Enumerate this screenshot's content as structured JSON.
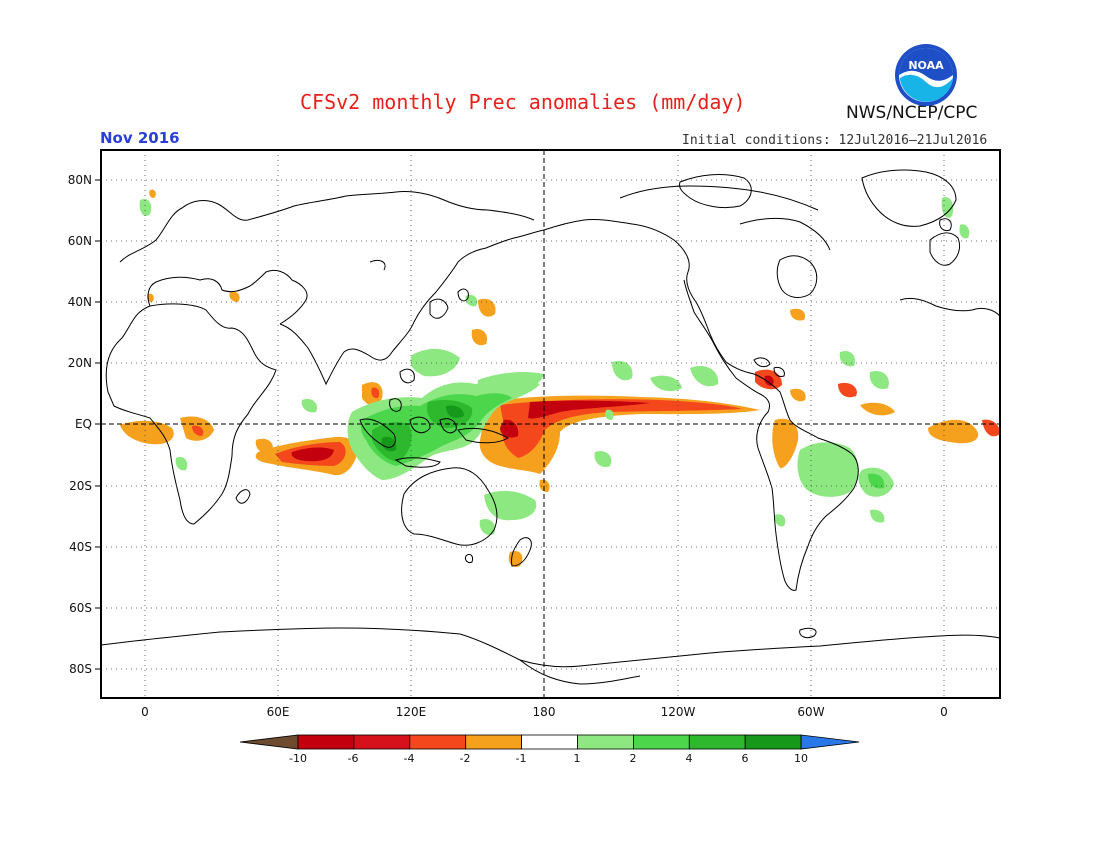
{
  "header": {
    "title": "CFSv2 monthly Prec anomalies (mm/day)",
    "month": "Nov 2016",
    "agency": "NWS/NCEP/CPC",
    "initial_conditions": "Initial conditions: 12Jul2016–21Jul2016",
    "logo_icon": "noaa-logo-icon",
    "logo_text": "NOAA"
  },
  "map": {
    "projection": "cylindrical",
    "lat_labels": [
      "80N",
      "60N",
      "40N",
      "20N",
      "EQ",
      "20S",
      "40S",
      "60S",
      "80S"
    ],
    "lon_labels": [
      "0",
      "60E",
      "120E",
      "180",
      "120W",
      "60W",
      "0"
    ],
    "reference_lines": [
      "equator",
      "dateline"
    ],
    "grid": "dotted"
  },
  "colorbar": {
    "labels": [
      "-10",
      "-6",
      "-4",
      "-2",
      "-1",
      "1",
      "2",
      "4",
      "6",
      "10"
    ],
    "colors": [
      "#6e4a2e",
      "#c3000e",
      "#d7111b",
      "#f5471c",
      "#f5a11e",
      "#ffffff",
      "#8ee882",
      "#4bd64b",
      "#2db82d",
      "#16991b",
      "#2a78e8"
    ]
  },
  "chart_data": {
    "type": "heatmap",
    "title": "CFSv2 monthly Prec anomalies (mm/day)",
    "subtitle": "Nov 2016",
    "units": "mm/day",
    "lat_range": [
      -90,
      90
    ],
    "lon_range": [
      -20,
      340
    ],
    "levels": [
      -10,
      -6,
      -4,
      -2,
      -1,
      1,
      2,
      4,
      6,
      10
    ],
    "anomaly_regions": [
      {
        "sign": "negative",
        "peak": "<-6",
        "region": "central equatorial Pacific 160E-130W, 0-10N"
      },
      {
        "sign": "negative",
        "peak": "<-6",
        "region": "southern Indian Ocean 60E-95E, 5S-15S"
      },
      {
        "sign": "negative",
        "peak": "<-4",
        "region": "equatorial Atlantic / Gulf of Guinea"
      },
      {
        "sign": "positive",
        "peak": ">6",
        "region": "Maritime Continent 95E-150E, 10N-10S"
      },
      {
        "sign": "positive",
        "peak": ">2",
        "region": "tropical north Pacific 160E-180, 10N-20N"
      },
      {
        "sign": "positive",
        "peak": ">2",
        "region": "South America 40W-70W, 5S-25S"
      },
      {
        "sign": "positive",
        "peak": ">2",
        "region": "southwest Pacific 150E-170E, 20S-30S"
      }
    ]
  }
}
